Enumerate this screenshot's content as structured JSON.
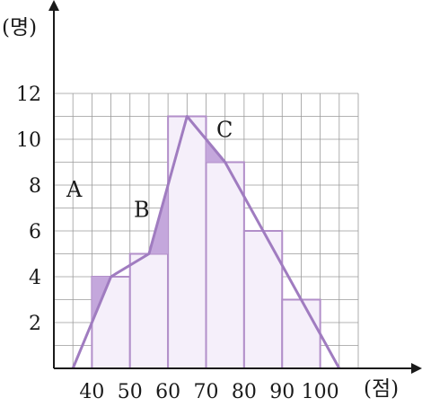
{
  "chart_data": {
    "type": "histogram",
    "title": "",
    "xlabel": "(점)",
    "ylabel": "(명)",
    "x_ticks": [
      "40",
      "50",
      "60",
      "70",
      "80",
      "90",
      "100"
    ],
    "y_ticks": [
      "2",
      "4",
      "6",
      "8",
      "10",
      "12"
    ],
    "xlim": [
      30,
      110
    ],
    "ylim": [
      0,
      12
    ],
    "grid": true,
    "bins": [
      {
        "from": 40,
        "to": 50,
        "count": 4
      },
      {
        "from": 50,
        "to": 60,
        "count": 5
      },
      {
        "from": 60,
        "to": 70,
        "count": 11
      },
      {
        "from": 70,
        "to": 80,
        "count": 9
      },
      {
        "from": 80,
        "to": 90,
        "count": 6
      },
      {
        "from": 90,
        "to": 100,
        "count": 3
      }
    ],
    "polygon": {
      "x": [
        35,
        45,
        55,
        65,
        75,
        85,
        95,
        105
      ],
      "y": [
        0,
        4,
        5,
        11,
        9,
        6,
        3,
        0
      ]
    },
    "shaded_regions": [
      {
        "label": "A",
        "points": [
          [
            40,
            1.9
          ],
          [
            40,
            4
          ],
          [
            45,
            4
          ]
        ]
      },
      {
        "label": "B",
        "points": [
          [
            55,
            5
          ],
          [
            60,
            5
          ],
          [
            60,
            8
          ]
        ]
      },
      {
        "label": "C",
        "points": [
          [
            70,
            10
          ],
          [
            75,
            9
          ],
          [
            70,
            9
          ]
        ]
      }
    ],
    "colors": {
      "bar_fill": "#f5effa",
      "bar_stroke": "#b28fc9",
      "polygon_stroke": "#a07cc0",
      "shade_fill": "#c4a7dc",
      "grid": "#9a9a9a",
      "axis": "#1a1a1a"
    }
  }
}
